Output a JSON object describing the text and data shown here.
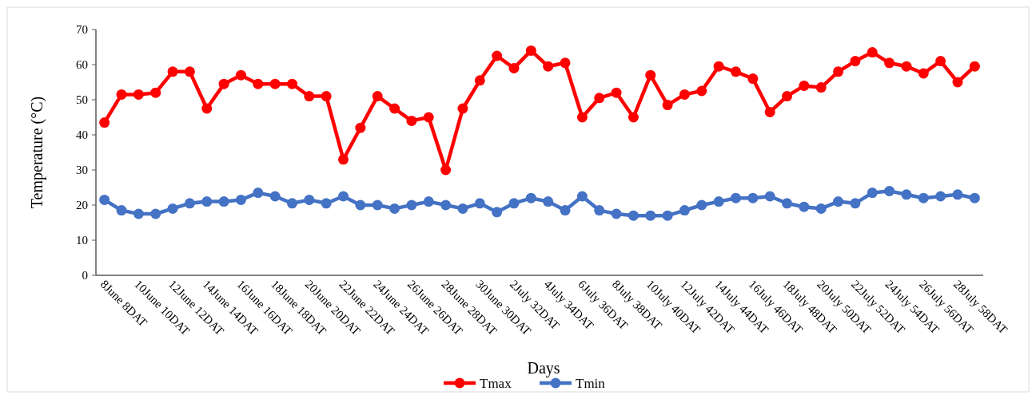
{
  "chart_data": {
    "type": "line",
    "xlabel": "Days",
    "ylabel": "Temperature (°C)",
    "categories": [
      "8June 8DAT",
      null,
      "10June 10DAT",
      null,
      "12June 12DAT",
      null,
      "14June 14DAT",
      null,
      "16June 16DAT",
      null,
      "18June 18DAT",
      null,
      "20June 20DAT",
      null,
      "22June 22DAT",
      null,
      "24June 24DAT",
      null,
      "26June 26DAT",
      null,
      "28June 28DAT",
      null,
      "30June 30DAT",
      null,
      "2July 32DAT",
      null,
      "4July 34DAT",
      null,
      "6July 36DAT",
      null,
      "8July 38DAT",
      null,
      "10July 40DAT",
      null,
      "12July 42DAT",
      null,
      "14July 44DAT",
      null,
      "16July 46DAT",
      null,
      "18July 48DAT",
      null,
      "20July 50DAT",
      null,
      "22July 52DAT",
      null,
      "24July 54DAT",
      null,
      "26July 56DAT",
      null,
      "28July 58DAT",
      null
    ],
    "series": [
      {
        "name": "Tmax",
        "color": "#ff0000",
        "values": [
          43.5,
          51.5,
          51.5,
          52,
          58,
          58,
          47.5,
          54.5,
          57,
          54.5,
          54.5,
          54.5,
          51,
          51,
          33,
          42,
          51,
          47.5,
          44,
          45,
          30,
          47.5,
          55.5,
          62.5,
          59,
          64,
          59.5,
          60.5,
          45,
          50.5,
          52,
          45,
          57,
          48.5,
          51.5,
          52.5,
          59.5,
          58,
          56,
          46.5,
          51,
          54,
          53.5,
          58,
          61,
          63.5,
          60.5,
          59.5,
          57.5,
          61,
          55,
          59.5
        ]
      },
      {
        "name": "Tmin",
        "color": "#4472c4",
        "values": [
          21.5,
          18.5,
          17.5,
          17.5,
          19,
          20.5,
          21,
          21,
          21.5,
          23.5,
          22.5,
          20.5,
          21.5,
          20.5,
          22.5,
          20,
          20,
          19,
          20,
          21,
          20,
          19,
          20.5,
          18,
          20.5,
          22,
          21,
          18.5,
          22.5,
          18.5,
          17.5,
          17,
          17,
          17,
          18.5,
          20,
          21,
          22,
          22,
          22.5,
          20.5,
          19.5,
          19,
          21,
          20.5,
          23.5,
          24,
          23,
          22,
          22.5,
          23,
          22
        ]
      }
    ],
    "ylim": [
      0,
      70
    ],
    "yticks": [
      0,
      10,
      20,
      30,
      40,
      50,
      60,
      70
    ],
    "grid": false,
    "legend": "bottom",
    "marker": "circle",
    "line_style": "solid"
  }
}
